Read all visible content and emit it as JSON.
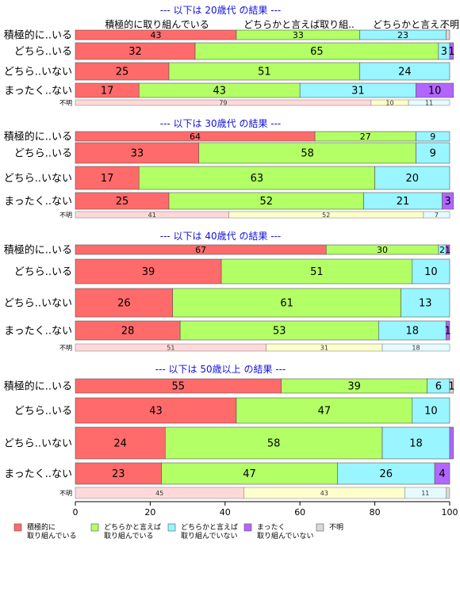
{
  "chart_data": {
    "type": "bar",
    "orientation": "horizontal",
    "stacked": true,
    "xlim": [
      0,
      100
    ],
    "x_ticks": [
      0,
      20,
      40,
      60,
      80,
      100
    ],
    "column_headers": [
      "積極的に取り組んでいる",
      "どちらかと言えば取り組..",
      "どちらかと言え..",
      "不明"
    ],
    "colors": [
      "#ff6b6b",
      "#b3ff66",
      "#99f5ff",
      "#b266ff",
      "#d9d9d9"
    ],
    "unknown_colors": [
      "#ffd9d9",
      "#ffffcc",
      "#e5fbff"
    ],
    "legend": [
      {
        "line1": "積極的に",
        "line2": "取り組んでいる"
      },
      {
        "line1": "どちらかと言えば",
        "line2": "取り組んでいる"
      },
      {
        "line1": "どちらかと言えば",
        "line2": "取り組んでいない"
      },
      {
        "line1": "まったく",
        "line2": "取り組んでいない"
      },
      {
        "line1": "不明",
        "line2": ""
      }
    ],
    "groups": [
      {
        "title": "--- 以下は 20歳代 の結果 ---",
        "rows": [
          {
            "label": "積極的に..いる",
            "values": [
              43,
              33,
              23,
              0,
              1
            ],
            "labels": [
              "43",
              "33",
              "23",
              "",
              ""
            ]
          },
          {
            "label": "どちら..いる",
            "values": [
              32,
              65,
              3,
              1,
              0
            ],
            "labels": [
              "32",
              "65",
              "3",
              "1",
              ""
            ]
          },
          {
            "label": "どちら..いない",
            "values": [
              25,
              51,
              24,
              0,
              0
            ],
            "labels": [
              "25",
              "51",
              "24",
              "",
              ""
            ]
          },
          {
            "label": "まったく..ない",
            "values": [
              17,
              43,
              31,
              10,
              0
            ],
            "labels": [
              "17",
              "43",
              "31",
              "10",
              ""
            ]
          }
        ],
        "unknown": {
          "label": "不明",
          "values": [
            79,
            10,
            11
          ],
          "labels": [
            "79",
            "10",
            "11"
          ]
        }
      },
      {
        "title": "--- 以下は 30歳代 の結果 ---",
        "rows": [
          {
            "label": "積極的に..いる",
            "values": [
              64,
              27,
              9,
              0,
              0
            ],
            "labels": [
              "64",
              "27",
              "9",
              "",
              ""
            ]
          },
          {
            "label": "どちら..いる",
            "values": [
              33,
              58,
              9,
              0,
              0
            ],
            "labels": [
              "33",
              "58",
              "9",
              "",
              ""
            ]
          },
          {
            "label": "どちら..いない",
            "values": [
              17,
              63,
              20,
              0,
              0
            ],
            "labels": [
              "17",
              "63",
              "20",
              "",
              ""
            ]
          },
          {
            "label": "まったく..ない",
            "values": [
              25,
              52,
              21,
              3,
              0
            ],
            "labels": [
              "25",
              "52",
              "21",
              "3",
              ""
            ]
          }
        ],
        "unknown": {
          "label": "不明",
          "values": [
            41,
            52,
            7
          ],
          "labels": [
            "41",
            "52",
            "7"
          ]
        }
      },
      {
        "title": "--- 以下は 40歳代 の結果 ---",
        "rows": [
          {
            "label": "積極的に..いる",
            "values": [
              67,
              30,
              2,
              1,
              0
            ],
            "labels": [
              "67",
              "30",
              "2",
              "1",
              ""
            ]
          },
          {
            "label": "どちら..いる",
            "values": [
              39,
              51,
              10,
              0,
              0
            ],
            "labels": [
              "39",
              "51",
              "10",
              "",
              ""
            ]
          },
          {
            "label": "どちら..いない",
            "values": [
              26,
              61,
              13,
              0,
              0
            ],
            "labels": [
              "26",
              "61",
              "13",
              "",
              ""
            ]
          },
          {
            "label": "まったく..ない",
            "values": [
              28,
              53,
              18,
              1,
              0
            ],
            "labels": [
              "28",
              "53",
              "18",
              "1",
              ""
            ]
          }
        ],
        "unknown": {
          "label": "不明",
          "values": [
            51,
            31,
            18
          ],
          "labels": [
            "51",
            "31",
            "18"
          ]
        }
      },
      {
        "title": "--- 以下は 50歳以上 の結果 ---",
        "rows": [
          {
            "label": "積極的に..いる",
            "values": [
              55,
              39,
              6,
              0,
              1
            ],
            "labels": [
              "55",
              "39",
              "6",
              "",
              "1"
            ]
          },
          {
            "label": "どちら..いる",
            "values": [
              43,
              47,
              10,
              0,
              0
            ],
            "labels": [
              "43",
              "47",
              "10",
              "",
              ""
            ]
          },
          {
            "label": "どちら..いない",
            "values": [
              24,
              58,
              18,
              1,
              0
            ],
            "labels": [
              "24",
              "58",
              "18",
              "",
              ""
            ]
          },
          {
            "label": "まったく..ない",
            "values": [
              23,
              47,
              26,
              4,
              0
            ],
            "labels": [
              "23",
              "47",
              "26",
              "4",
              ""
            ]
          }
        ],
        "unknown": {
          "label": "不明",
          "values": [
            45,
            43,
            11,
            1
          ],
          "labels": [
            "45",
            "43",
            "11",
            ""
          ]
        }
      }
    ]
  }
}
